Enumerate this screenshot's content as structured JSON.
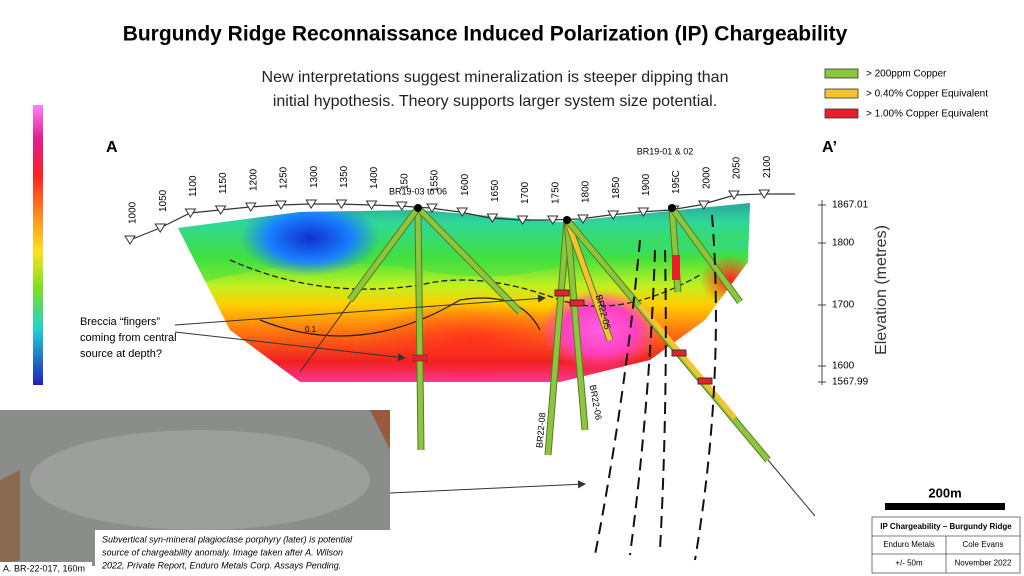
{
  "header": {
    "title": "Burgundy Ridge Reconnaissance Induced Polarization (IP) Chargeability",
    "subtitle": [
      "New interpretations suggest mineralization is steeper dipping than",
      "initial hypothesis. Theory supports larger system size potential."
    ]
  },
  "legend": [
    {
      "label": "> 200ppm Copper",
      "color": "#8cc63f"
    },
    {
      "label": "> 0.40% Copper Equivalent",
      "color": "#f5c330"
    },
    {
      "label": "> 1.00% Copper Equivalent",
      "color": "#e8202a"
    }
  ],
  "section": {
    "start_label": "A",
    "end_label": "A’",
    "stations": [
      "1000",
      "1050",
      "1100",
      "1150",
      "1200",
      "1250",
      "1300",
      "1350",
      "1400",
      "150",
      "1550",
      "1600",
      "1650",
      "1700",
      "1750",
      "1800",
      "1850",
      "1900",
      "195C",
      "2000",
      "2050",
      "2100"
    ],
    "elevation_labels": [
      "1867.01",
      "1800",
      "1700",
      "1600",
      "1567.99"
    ],
    "elevation_title": "Elevation (metres)",
    "contour_label": "0.1"
  },
  "holes": {
    "collar_1": "BR19-03 to 06",
    "collar_2": "BR19-01 & 02",
    "br22_05": "BR22-05",
    "br22_06": "BR22-06",
    "br22_08": "BR22-08"
  },
  "annotation": [
    "Breccia “fingers”",
    "coming from central",
    "source at depth?"
  ],
  "photo": {
    "caption": [
      "Subvertical syn-mineral plagioclase porphyry (later) is potential",
      "source of chargeability anomaly. Image taken after A. Wilson",
      "2022, Private Report, Enduro Metals Corp. Assays Pending."
    ],
    "label": "A. BR-22-017, 160m"
  },
  "scale": "200m",
  "title_block": {
    "title": "IP Chargeability – Burgundy Ridge",
    "rows": [
      [
        "Enduro Metals",
        "Cole Evans"
      ],
      [
        "+/- 50m",
        "November 2022"
      ]
    ]
  }
}
